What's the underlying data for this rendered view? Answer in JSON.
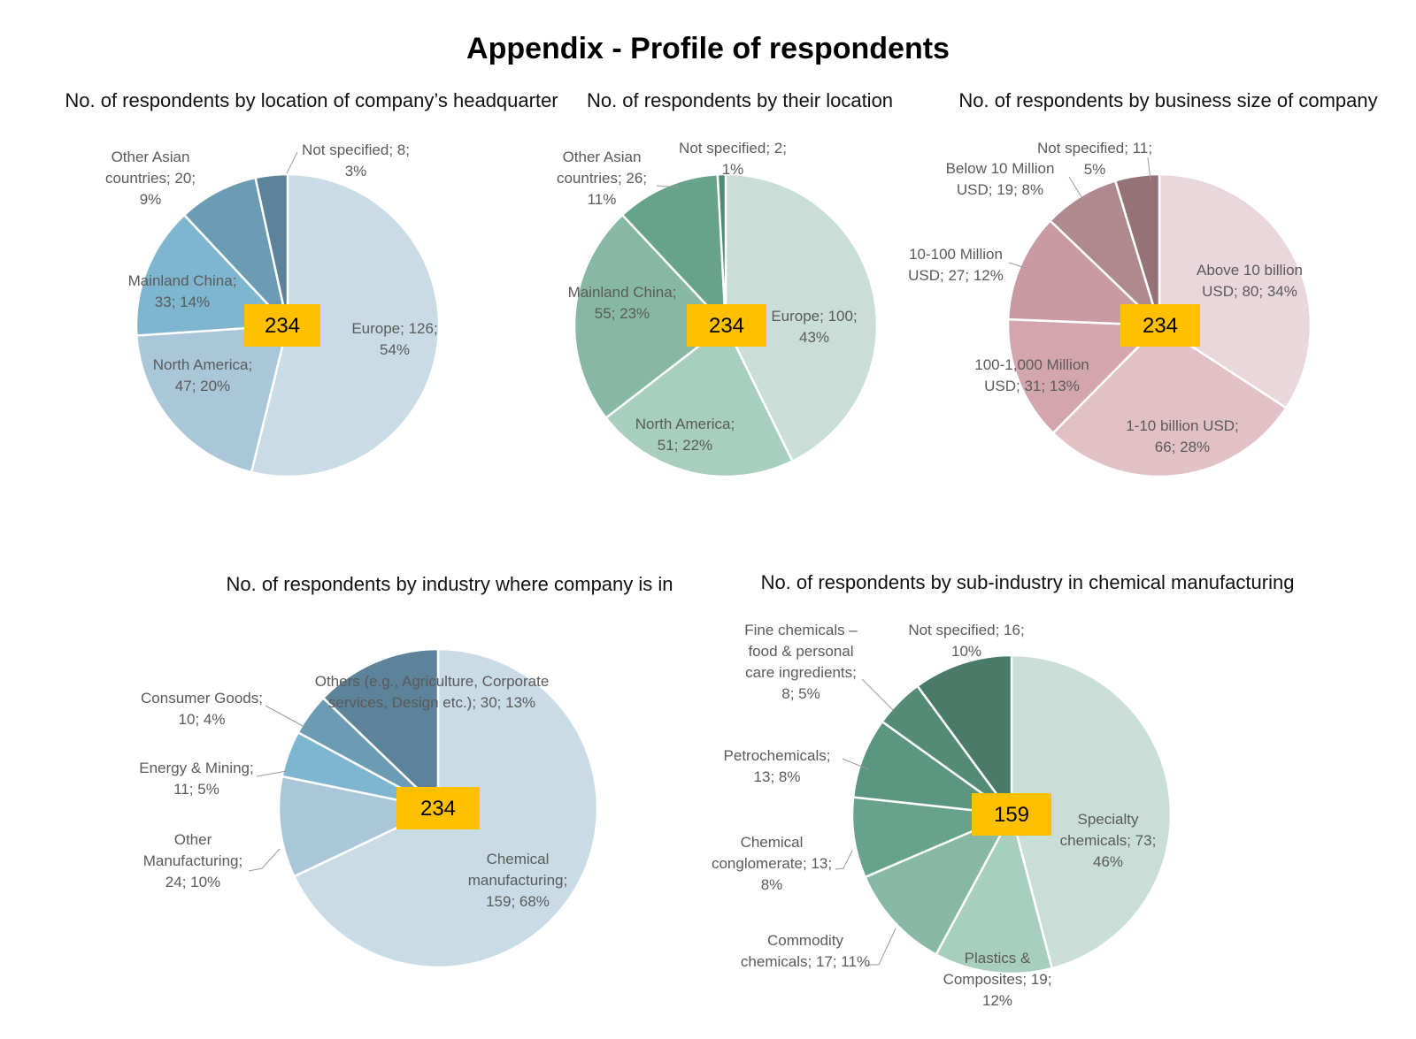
{
  "title": "Appendix - Profile of respondents",
  "chart_data": [
    {
      "type": "pie",
      "title": "No. of respondents by location of company’s headquarter",
      "total": "234",
      "slices": [
        {
          "name": "Europe",
          "value": 126,
          "pct": "54%",
          "color": "#c9dbe5",
          "label": [
            "Europe; 126;",
            "54%"
          ]
        },
        {
          "name": "North America",
          "value": 47,
          "pct": "20%",
          "color": "#a9c7d8",
          "label": [
            "North America;",
            "47; 20%"
          ]
        },
        {
          "name": "Mainland China",
          "value": 33,
          "pct": "14%",
          "color": "#7fb6cf",
          "label": [
            "Mainland China;",
            "33; 14%"
          ]
        },
        {
          "name": "Other Asian countries",
          "value": 20,
          "pct": "9%",
          "color": "#6b9cb3",
          "label": [
            "Other Asian",
            "countries; 20;",
            "9%"
          ]
        },
        {
          "name": "Not specified",
          "value": 8,
          "pct": "3%",
          "color": "#5c8399",
          "label": [
            "Not specified; 8;",
            "3%"
          ]
        }
      ]
    },
    {
      "type": "pie",
      "title": "No. of respondents by their location",
      "total": "234",
      "slices": [
        {
          "name": "Europe",
          "value": 100,
          "pct": "43%",
          "color": "#c9ded6",
          "label": [
            "Europe; 100;",
            "43%"
          ]
        },
        {
          "name": "North America",
          "value": 51,
          "pct": "22%",
          "color": "#a8cebe",
          "label": [
            "North America;",
            "51; 22%"
          ]
        },
        {
          "name": "Mainland China",
          "value": 55,
          "pct": "23%",
          "color": "#86b8a3",
          "label": [
            "Mainland China;",
            "55; 23%"
          ]
        },
        {
          "name": "Other Asian countries",
          "value": 26,
          "pct": "11%",
          "color": "#67a38b",
          "label": [
            "Other Asian",
            "countries; 26;",
            "11%"
          ]
        },
        {
          "name": "Not specified",
          "value": 2,
          "pct": "1%",
          "color": "#4f8a72",
          "label": [
            "Not specified; 2;",
            "1%"
          ]
        }
      ]
    },
    {
      "type": "pie",
      "title": "No. of respondents by business size of company",
      "total": "234",
      "slices": [
        {
          "name": "Above 10 billion USD",
          "value": 80,
          "pct": "34%",
          "color": "#ead7db",
          "label": [
            "Above 10 billion",
            "USD; 80; 34%"
          ]
        },
        {
          "name": "1-10 billion USD",
          "value": 66,
          "pct": "28%",
          "color": "#e1c0c6",
          "label": [
            "1-10 billion USD;",
            "66; 28%"
          ]
        },
        {
          "name": "100-1,000 Million USD",
          "value": 31,
          "pct": "13%",
          "color": "#d3a6ae",
          "label": [
            "100-1,000 Million",
            "USD; 31; 13%"
          ]
        },
        {
          "name": "10-100 Million USD",
          "value": 27,
          "pct": "12%",
          "color": "#c89aa1",
          "label": [
            "10-100 Million",
            "USD; 27; 12%"
          ]
        },
        {
          "name": "Below 10 Million USD",
          "value": 19,
          "pct": "8%",
          "color": "#ae8a8f",
          "label": [
            "Below 10 Million",
            "USD; 19; 8%"
          ]
        },
        {
          "name": "Not specified",
          "value": 11,
          "pct": "5%",
          "color": "#957178",
          "label": [
            "Not specified; 11;",
            "5%"
          ]
        }
      ]
    },
    {
      "type": "pie",
      "title": "No. of respondents by industry where company is in",
      "total": "234",
      "slices": [
        {
          "name": "Chemical manufacturing",
          "value": 159,
          "pct": "68%",
          "color": "#c9dbe5",
          "label": [
            "Chemical",
            "manufacturing;",
            "159; 68%"
          ]
        },
        {
          "name": "Other Manufacturing",
          "value": 24,
          "pct": "10%",
          "color": "#a9c7d8",
          "label": [
            "Other",
            "Manufacturing;",
            "24; 10%"
          ]
        },
        {
          "name": "Energy & Mining",
          "value": 11,
          "pct": "5%",
          "color": "#7fb6cf",
          "label": [
            "Energy & Mining;",
            "11; 5%"
          ]
        },
        {
          "name": "Consumer Goods",
          "value": 10,
          "pct": "4%",
          "color": "#6b9cb3",
          "label": [
            "Consumer Goods;",
            "10; 4%"
          ]
        },
        {
          "name": "Others (e.g., Agriculture, Corporate services, Design etc.)",
          "value": 30,
          "pct": "13%",
          "color": "#5c8399",
          "label": [
            "Others (e.g., Agriculture, Corporate",
            "services, Design etc.); 30; 13%"
          ]
        }
      ]
    },
    {
      "type": "pie",
      "title": "No. of respondents by sub-industry in chemical manufacturing",
      "total": "159",
      "slices": [
        {
          "name": "Specialty chemicals",
          "value": 73,
          "pct": "46%",
          "color": "#c9ded6",
          "label": [
            "Specialty",
            "chemicals; 73;",
            "46%"
          ]
        },
        {
          "name": "Plastics & Composites",
          "value": 19,
          "pct": "12%",
          "color": "#a8cebe",
          "label": [
            "Plastics &",
            "Composites; 19;",
            "12%"
          ]
        },
        {
          "name": "Commodity chemicals",
          "value": 17,
          "pct": "11%",
          "color": "#86b8a3",
          "label": [
            "Commodity",
            "chemicals; 17; 11%"
          ]
        },
        {
          "name": "Chemical conglomerate",
          "value": 13,
          "pct": "8%",
          "color": "#67a38b",
          "label": [
            "Chemical",
            "conglomerate; 13;",
            "8%"
          ]
        },
        {
          "name": "Petrochemicals",
          "value": 13,
          "pct": "8%",
          "color": "#5b9780",
          "label": [
            "Petrochemicals;",
            "13; 8%"
          ]
        },
        {
          "name": "Fine chemicals – food & personal care ingredients",
          "value": 8,
          "pct": "5%",
          "color": "#548b74",
          "label": [
            "Fine chemicals –",
            "food & personal",
            "care ingredients;",
            "8; 5%"
          ]
        },
        {
          "name": "Not specified",
          "value": 16,
          "pct": "10%",
          "color": "#4a7b68",
          "label": [
            "Not specified; 16;",
            "10%"
          ]
        }
      ]
    }
  ]
}
